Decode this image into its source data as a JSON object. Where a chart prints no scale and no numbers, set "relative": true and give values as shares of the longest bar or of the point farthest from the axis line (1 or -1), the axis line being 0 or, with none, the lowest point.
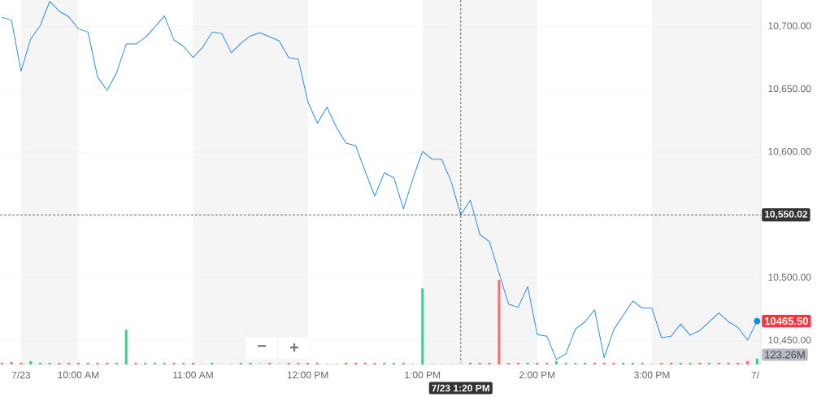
{
  "chart_data": [
    {
      "type": "line",
      "x": [
        "--07-23T09:20",
        "--07-23T09:25",
        "--07-23T09:30",
        "--07-23T09:35",
        "--07-23T09:40",
        "--07-23T09:45",
        "--07-23T09:50",
        "--07-23T09:55",
        "--07-23T10:00",
        "--07-23T10:05",
        "--07-23T10:10",
        "--07-23T10:15",
        "--07-23T10:20",
        "--07-23T10:25",
        "--07-23T10:30",
        "--07-23T10:35",
        "--07-23T10:40",
        "--07-23T10:45",
        "--07-23T10:50",
        "--07-23T10:55",
        "--07-23T11:00",
        "--07-23T11:05",
        "--07-23T11:10",
        "--07-23T11:15",
        "--07-23T11:20",
        "--07-23T11:25",
        "--07-23T11:30",
        "--07-23T11:35",
        "--07-23T11:40",
        "--07-23T11:45",
        "--07-23T11:50",
        "--07-23T11:55",
        "--07-23T12:00",
        "--07-23T12:05",
        "--07-23T12:10",
        "--07-23T12:15",
        "--07-23T12:20",
        "--07-23T12:25",
        "--07-23T12:30",
        "--07-23T12:35",
        "--07-23T12:40",
        "--07-23T12:45",
        "--07-23T12:50",
        "--07-23T12:55",
        "--07-23T13:00",
        "--07-23T13:05",
        "--07-23T13:10",
        "--07-23T13:15",
        "--07-23T13:20",
        "--07-23T13:25",
        "--07-23T13:30",
        "--07-23T13:35",
        "--07-23T13:45",
        "--07-23T13:50",
        "--07-23T13:55",
        "--07-23T14:00",
        "--07-23T14:05",
        "--07-23T14:10",
        "--07-23T14:15",
        "--07-23T14:20",
        "--07-23T14:25",
        "--07-23T14:30",
        "--07-23T14:35",
        "--07-23T14:40",
        "--07-23T14:45",
        "--07-23T14:50",
        "--07-23T14:55",
        "--07-23T15:00",
        "--07-23T15:05",
        "--07-23T15:10",
        "--07-23T15:15",
        "--07-23T15:20",
        "--07-23T15:25",
        "--07-23T15:30",
        "--07-23T15:35",
        "--07-23T15:40",
        "--07-23T15:45",
        "--07-23T15:50",
        "--07-23T15:55"
      ],
      "series": [
        {
          "color": "#2b8ef2",
          "values": [
            10707.2,
            10704.9,
            10664.3,
            10689.8,
            10700.6,
            10719.9,
            10712.1,
            10707.6,
            10698.1,
            10695.5,
            10659.9,
            10649.0,
            10663.1,
            10686.0,
            10686.0,
            10691.1,
            10699.4,
            10708.3,
            10689.2,
            10684.1,
            10675.2,
            10683.4,
            10695.5,
            10694.3,
            10679.0,
            10686.6,
            10692.4,
            10694.9,
            10691.7,
            10688.5,
            10675.2,
            10673.9,
            10640.1,
            10622.9,
            10635.7,
            10619.7,
            10607.0,
            10605.1,
            10584.7,
            10565.0,
            10583.4,
            10579.6,
            10554.8,
            10579.0,
            10600.6,
            10594.3,
            10594.3,
            10576.4,
            10550.0,
            10561.8,
            10534.4,
            10528.7,
            10479.0,
            10476.4,
            10493.0,
            10454.8,
            10453.5,
            10435.0,
            10439.5,
            10459.3,
            10465.0,
            10474.5,
            10436.3,
            10458.6,
            10470.1,
            10481.5,
            10475.8,
            10475.8,
            10452.2,
            10453.5,
            10463.1,
            10454.2,
            10458.0,
            10465.0,
            10472.0,
            10465.0,
            10460.5,
            10450.3,
            10465.5
          ]
        }
      ],
      "xlim": [
        "--07-23T09:19",
        "--07-23T15:57"
      ],
      "ylim": [
        10431,
        10721
      ],
      "xticks": [
        {
          "value": "--07-23T09:30",
          "label": "7/23"
        },
        {
          "value": "--07-23T10:00",
          "label": "10:00 AM"
        },
        {
          "value": "--07-23T11:00",
          "label": "11:00 AM"
        },
        {
          "value": "--07-23T12:00",
          "label": "12:00 PM"
        },
        {
          "value": "--07-23T13:00",
          "label": "1:00 PM"
        },
        {
          "value": "--07-23T14:00",
          "label": "2:00 PM"
        },
        {
          "value": "--07-23T15:00",
          "label": "3:00 PM"
        },
        {
          "value": "--07-23T15:54",
          "label": "7/"
        }
      ],
      "yticks": [
        {
          "value": 10450,
          "label": "10,450.00"
        },
        {
          "value": 10500,
          "label": "10,500.00"
        },
        {
          "value": 10600,
          "label": "10,600.00"
        },
        {
          "value": 10650,
          "label": "10,650.00"
        },
        {
          "value": 10700,
          "label": "10,700.00"
        }
      ],
      "grid": "y",
      "bands": [
        {
          "axis": "x",
          "from": "--07-23T09:30",
          "to": "--07-23T10:00",
          "color": "#f5f5f5"
        },
        {
          "axis": "x",
          "from": "--07-23T11:00",
          "to": "--07-23T12:00",
          "color": "#f5f5f5"
        },
        {
          "axis": "x",
          "from": "--07-23T13:00",
          "to": "--07-23T14:00",
          "color": "#f5f5f5"
        },
        {
          "axis": "x",
          "from": "--07-23T15:00",
          "to": "--07-23T15:57",
          "color": "#f5f5f5"
        }
      ],
      "ref_lines": [
        {
          "axis": "x",
          "value": "--07-23T13:20",
          "label": "7/23 1:20 PM",
          "color": "#333333",
          "line_style": "dashed"
        },
        {
          "axis": "y",
          "value": 10550.02,
          "label": "10,550.02",
          "color": "#333333",
          "line_style": "dashed"
        }
      ],
      "annotations": [
        {
          "text": "10465.50",
          "x": "--07-23T15:55",
          "y": 10465.5
        },
        "−",
        "+"
      ]
    },
    {
      "type": "bar",
      "relative": true,
      "xlim": [
        "--07-23T09:19",
        "--07-23T15:57"
      ],
      "x": [
        "--07-23T09:20",
        "--07-23T09:25",
        "--07-23T09:30",
        "--07-23T09:35",
        "--07-23T09:40",
        "--07-23T09:45",
        "--07-23T09:50",
        "--07-23T09:55",
        "--07-23T10:00",
        "--07-23T10:05",
        "--07-23T10:10",
        "--07-23T10:15",
        "--07-23T10:20",
        "--07-23T10:25",
        "--07-23T10:30",
        "--07-23T10:35",
        "--07-23T10:40",
        "--07-23T10:45",
        "--07-23T10:50",
        "--07-23T10:55",
        "--07-23T11:00",
        "--07-23T11:05",
        "--07-23T11:10",
        "--07-23T11:15",
        "--07-23T11:20",
        "--07-23T11:25",
        "--07-23T11:30",
        "--07-23T11:35",
        "--07-23T11:40",
        "--07-23T11:45",
        "--07-23T11:50",
        "--07-23T11:55",
        "--07-23T12:00",
        "--07-23T12:05",
        "--07-23T12:10",
        "--07-23T12:15",
        "--07-23T12:20",
        "--07-23T12:25",
        "--07-23T12:30",
        "--07-23T12:35",
        "--07-23T12:40",
        "--07-23T12:45",
        "--07-23T12:50",
        "--07-23T12:55",
        "--07-23T13:00",
        "--07-23T13:05",
        "--07-23T13:10",
        "--07-23T13:15",
        "--07-23T13:20",
        "--07-23T13:25",
        "--07-23T13:30",
        "--07-23T13:35",
        "--07-23T13:40",
        "--07-23T13:45",
        "--07-23T13:50",
        "--07-23T13:55",
        "--07-23T14:00",
        "--07-23T14:05",
        "--07-23T14:10",
        "--07-23T14:15",
        "--07-23T14:20",
        "--07-23T14:25",
        "--07-23T14:30",
        "--07-23T14:35",
        "--07-23T14:40",
        "--07-23T14:45",
        "--07-23T14:50",
        "--07-23T14:55",
        "--07-23T15:00",
        "--07-23T15:05",
        "--07-23T15:10",
        "--07-23T15:15",
        "--07-23T15:20",
        "--07-23T15:25",
        "--07-23T15:30",
        "--07-23T15:35",
        "--07-23T15:40",
        "--07-23T15:45",
        "--07-23T15:50",
        "--07-23T15:55"
      ],
      "values": [
        0.02,
        0.03,
        0.02,
        0.04,
        0.02,
        0.02,
        0.02,
        0.02,
        0.02,
        0.02,
        0.02,
        0.02,
        0.02,
        0.41,
        0.02,
        0.02,
        0.02,
        0.02,
        0.02,
        0.02,
        0.02,
        0.02,
        0.02,
        0.02,
        0.02,
        0.02,
        0.02,
        0.02,
        0.02,
        0.02,
        0.02,
        0.02,
        0.02,
        0.02,
        0.02,
        0.02,
        0.02,
        0.02,
        0.02,
        0.02,
        0.02,
        0.02,
        0.02,
        0.02,
        0.9,
        0.02,
        0.02,
        0.02,
        0.02,
        0.02,
        0.02,
        0.02,
        1,
        0.02,
        0.02,
        0.02,
        0.02,
        0.02,
        0.04,
        0.02,
        0.02,
        0.02,
        0.02,
        0.02,
        0.02,
        0.02,
        0.02,
        0.02,
        0.02,
        0.02,
        0.02,
        0.02,
        0.02,
        0.02,
        0.02,
        0.02,
        0.02,
        0.02,
        0.04,
        0.07
      ],
      "colors": [
        "#ff6b6f",
        "#ff6b6f",
        "#ff6b6f",
        "#45c98b",
        "#45c98b",
        "#45c98b",
        "#ff6b6f",
        "#ff6b6f",
        "#ff6b6f",
        "#ff6b6f",
        "#ff6b6f",
        "#ff6b6f",
        "#45c98b",
        "#45c98b",
        "#ff6b6f",
        "#45c98b",
        "#45c98b",
        "#45c98b",
        "#ff6b6f",
        "#ff6b6f",
        "#ff6b6f",
        "#e0e0e0",
        "#45c98b",
        "#e0e0e0",
        "#e0e0e0",
        "#45c98b",
        "#45c98b",
        "#e0e0e0",
        "#ff6b6f",
        "#e0e0e0",
        "#ff6b6f",
        "#ff6b6f",
        "#ff6b6f",
        "#ff6b6f",
        "#e0e0e0",
        "#e0e0e0",
        "#ff6b6f",
        "#ff6b6f",
        "#ff6b6f",
        "#ff6b6f",
        "#45c98b",
        "#45c98b",
        "#ff6b6f",
        "#e0e0e0",
        "#45c98b",
        "#e0e0e0",
        "#e0e0e0",
        "#e0e0e0",
        "#e0e0e0",
        "#ff6b6f",
        "#ff6b6f",
        "#ff6b6f",
        "#ff6b6f",
        "#ff6b6f",
        "#ff6b6f",
        "#45c98b",
        "#ff6b6f",
        "#ff6b6f",
        "#45c98b",
        "#45c98b",
        "#45c98b",
        "#45c98b",
        "#ff6b6f",
        "#ff6b6f",
        "#ff6b6f",
        "#45c98b",
        "#45c98b",
        "#45c98b",
        "#e0e0e0",
        "#ff6b6f",
        "#ff6b6f",
        "#45c98b",
        "#45c98b",
        "#ff6b6f",
        "#45c98b",
        "#ff6b6f",
        "#ff6b6f",
        "#ff6b6f",
        "#ff6b6f",
        "#45c98b"
      ],
      "annotations": [
        "123.26M"
      ]
    }
  ]
}
